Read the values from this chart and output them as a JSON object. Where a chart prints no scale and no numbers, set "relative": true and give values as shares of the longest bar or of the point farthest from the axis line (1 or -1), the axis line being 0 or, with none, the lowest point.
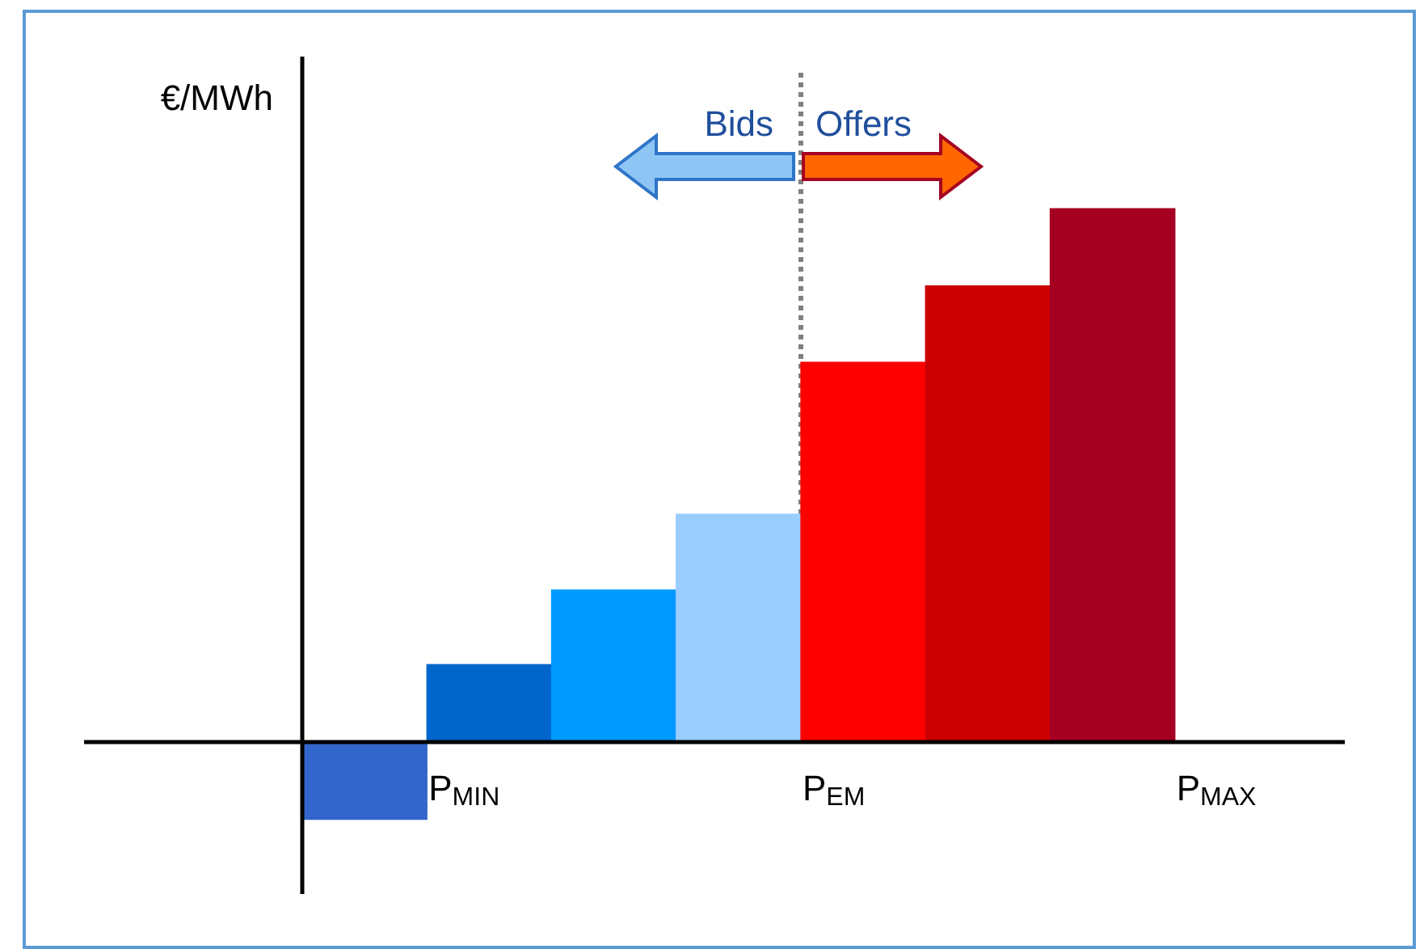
{
  "chart_data": {
    "type": "bar",
    "relative": true,
    "ylabel": "€/MWh",
    "categories": [
      null,
      "P$_{MIN}$",
      null,
      null,
      "P$_{EM}$",
      null,
      null,
      "P$_{MAX}$"
    ],
    "values": [
      -0.145,
      0.145,
      0.285,
      0.427,
      0.712,
      0.855,
      1,
      null
    ],
    "colors": [
      "#3366cc",
      "#0066cc",
      "#0099ff",
      "#99ccff",
      "#ff0000",
      "#cc0000",
      "#a50021",
      "#a50021"
    ],
    "annotations": [
      "Bids",
      "Offers"
    ]
  }
}
